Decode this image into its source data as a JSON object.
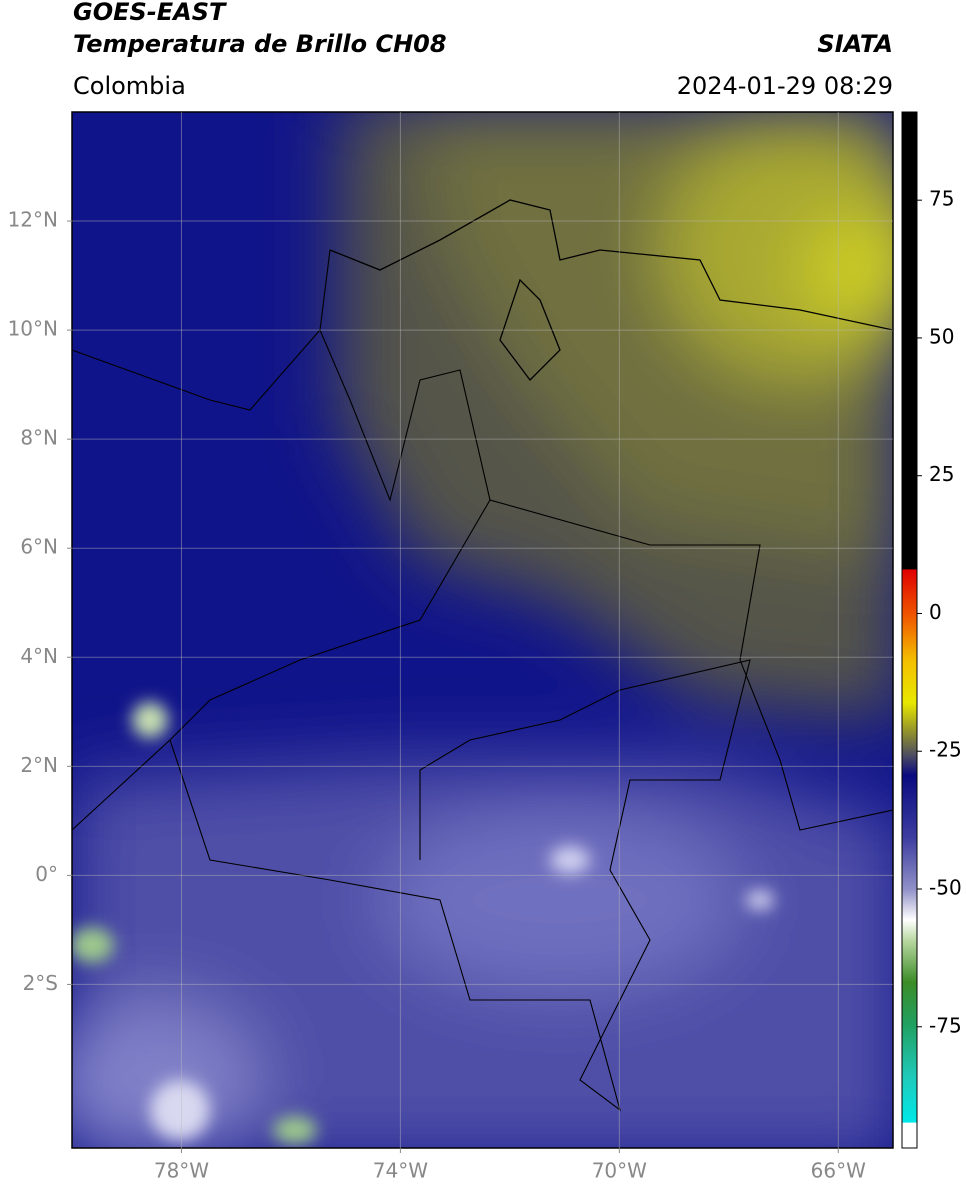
{
  "header": {
    "title": "GOES-EAST",
    "subtitle": "Temperatura de Brillo CH08",
    "region": "Colombia",
    "source": "SIATA",
    "datetime": "2024-01-29 08:29"
  },
  "map": {
    "xlim": [
      -80,
      -65
    ],
    "ylim": [
      -5,
      14
    ],
    "grid": true,
    "xticks": [
      {
        "value": -78,
        "label": "78°W"
      },
      {
        "value": -74,
        "label": "74°W"
      },
      {
        "value": -70,
        "label": "70°W"
      },
      {
        "value": -66,
        "label": "66°W"
      }
    ],
    "yticks": [
      {
        "value": 12,
        "label": "12°N"
      },
      {
        "value": 10,
        "label": "10°N"
      },
      {
        "value": 8,
        "label": "8°N"
      },
      {
        "value": 6,
        "label": "6°N"
      },
      {
        "value": 4,
        "label": "4°N"
      },
      {
        "value": 2,
        "label": "2°N"
      },
      {
        "value": 0,
        "label": "0°"
      },
      {
        "value": -2,
        "label": "2°S"
      }
    ]
  },
  "colorbar": {
    "lim": [
      -97,
      91
    ],
    "ticks": [
      75,
      50,
      25,
      0,
      -25,
      -50,
      -75
    ]
  }
}
